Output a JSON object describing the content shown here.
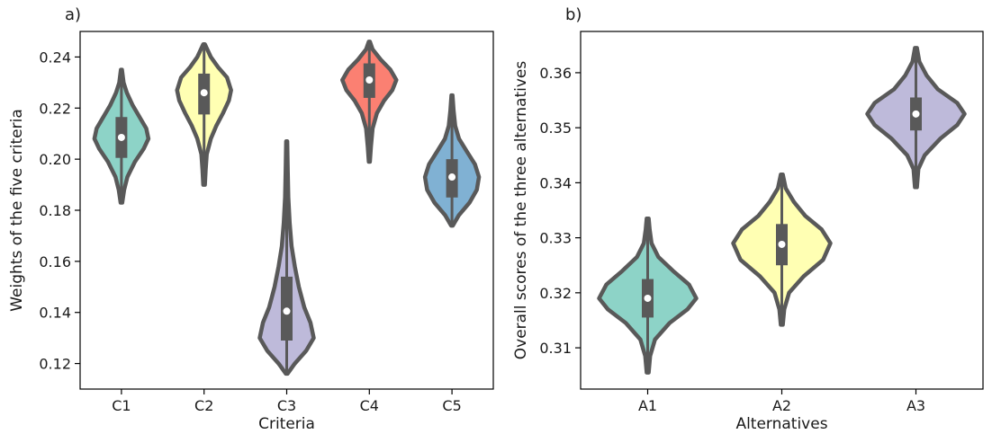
{
  "chart_data": [
    {
      "type": "violin",
      "panel_label": "a)",
      "xlabel": "Criteria",
      "ylabel": "Weights of the five criteria",
      "ylim": [
        0.11,
        0.25
      ],
      "yticks": [
        "0.12",
        "0.14",
        "0.16",
        "0.18",
        "0.20",
        "0.22",
        "0.24"
      ],
      "ytick_values": [
        0.12,
        0.14,
        0.16,
        0.18,
        0.2,
        0.22,
        0.24
      ],
      "grid": false,
      "categories": [
        "C1",
        "C2",
        "C3",
        "C4",
        "C5"
      ],
      "colors": [
        "#8dd3c7",
        "#ffffb3",
        "#bebada",
        "#fb8072",
        "#80b1d3"
      ],
      "violins": [
        {
          "min": 0.183,
          "max": 0.235,
          "q1": 0.2005,
          "q3": 0.2165,
          "median": 0.2085,
          "profile": [
            [
              0.183,
              0.03
            ],
            [
              0.188,
              0.1
            ],
            [
              0.193,
              0.22
            ],
            [
              0.199,
              0.5
            ],
            [
              0.204,
              0.82
            ],
            [
              0.208,
              1.0
            ],
            [
              0.212,
              0.92
            ],
            [
              0.216,
              0.7
            ],
            [
              0.221,
              0.42
            ],
            [
              0.226,
              0.2
            ],
            [
              0.23,
              0.08
            ],
            [
              0.235,
              0.02
            ]
          ]
        },
        {
          "min": 0.19,
          "max": 0.245,
          "q1": 0.2175,
          "q3": 0.2335,
          "median": 0.226,
          "profile": [
            [
              0.19,
              0.03
            ],
            [
              0.196,
              0.06
            ],
            [
              0.202,
              0.1
            ],
            [
              0.208,
              0.25
            ],
            [
              0.213,
              0.45
            ],
            [
              0.218,
              0.7
            ],
            [
              0.223,
              0.92
            ],
            [
              0.227,
              1.0
            ],
            [
              0.232,
              0.85
            ],
            [
              0.236,
              0.52
            ],
            [
              0.24,
              0.25
            ],
            [
              0.245,
              0.03
            ]
          ]
        },
        {
          "min": 0.116,
          "max": 0.207,
          "q1": 0.129,
          "q3": 0.154,
          "median": 0.1405,
          "profile": [
            [
              0.116,
              0.03
            ],
            [
              0.12,
              0.3
            ],
            [
              0.125,
              0.72
            ],
            [
              0.13,
              1.0
            ],
            [
              0.136,
              0.88
            ],
            [
              0.142,
              0.65
            ],
            [
              0.15,
              0.45
            ],
            [
              0.158,
              0.3
            ],
            [
              0.166,
              0.18
            ],
            [
              0.175,
              0.11
            ],
            [
              0.185,
              0.06
            ],
            [
              0.195,
              0.04
            ],
            [
              0.207,
              0.02
            ]
          ]
        },
        {
          "min": 0.199,
          "max": 0.246,
          "q1": 0.224,
          "q3": 0.2375,
          "median": 0.231,
          "profile": [
            [
              0.199,
              0.02
            ],
            [
              0.205,
              0.06
            ],
            [
              0.212,
              0.12
            ],
            [
              0.218,
              0.28
            ],
            [
              0.223,
              0.55
            ],
            [
              0.227,
              0.85
            ],
            [
              0.231,
              1.0
            ],
            [
              0.235,
              0.78
            ],
            [
              0.239,
              0.42
            ],
            [
              0.243,
              0.12
            ],
            [
              0.246,
              0.02
            ]
          ]
        },
        {
          "min": 0.174,
          "max": 0.225,
          "q1": 0.185,
          "q3": 0.2,
          "median": 0.193,
          "profile": [
            [
              0.174,
              0.03
            ],
            [
              0.178,
              0.25
            ],
            [
              0.183,
              0.65
            ],
            [
              0.188,
              0.92
            ],
            [
              0.193,
              1.0
            ],
            [
              0.198,
              0.85
            ],
            [
              0.203,
              0.55
            ],
            [
              0.208,
              0.26
            ],
            [
              0.213,
              0.12
            ],
            [
              0.219,
              0.06
            ],
            [
              0.225,
              0.02
            ]
          ]
        }
      ]
    },
    {
      "type": "violin",
      "panel_label": "b)",
      "xlabel": "Alternatives",
      "ylabel": "Overall scores of the three alternatives",
      "ylim": [
        0.3025,
        0.3675
      ],
      "yticks": [
        "0.31",
        "0.32",
        "0.33",
        "0.34",
        "0.35",
        "0.36"
      ],
      "ytick_values": [
        0.31,
        0.32,
        0.33,
        0.34,
        0.35,
        0.36
      ],
      "grid": false,
      "categories": [
        "A1",
        "A2",
        "A3"
      ],
      "colors": [
        "#8dd3c7",
        "#ffffb3",
        "#bebada"
      ],
      "violins": [
        {
          "min": 0.3055,
          "max": 0.3335,
          "q1": 0.3155,
          "q3": 0.3225,
          "median": 0.319,
          "profile": [
            [
              0.3055,
              0.02
            ],
            [
              0.3085,
              0.05
            ],
            [
              0.3115,
              0.15
            ],
            [
              0.3145,
              0.45
            ],
            [
              0.317,
              0.82
            ],
            [
              0.319,
              1.0
            ],
            [
              0.3215,
              0.85
            ],
            [
              0.324,
              0.52
            ],
            [
              0.3265,
              0.22
            ],
            [
              0.329,
              0.08
            ],
            [
              0.3315,
              0.04
            ],
            [
              0.3335,
              0.02
            ]
          ]
        },
        {
          "min": 0.3142,
          "max": 0.3415,
          "q1": 0.325,
          "q3": 0.3325,
          "median": 0.3288,
          "profile": [
            [
              0.3142,
              0.02
            ],
            [
              0.317,
              0.05
            ],
            [
              0.32,
              0.15
            ],
            [
              0.323,
              0.45
            ],
            [
              0.326,
              0.85
            ],
            [
              0.329,
              1.0
            ],
            [
              0.3315,
              0.82
            ],
            [
              0.334,
              0.48
            ],
            [
              0.3365,
              0.25
            ],
            [
              0.339,
              0.08
            ],
            [
              0.3415,
              0.02
            ]
          ]
        },
        {
          "min": 0.3392,
          "max": 0.3645,
          "q1": 0.3495,
          "q3": 0.3555,
          "median": 0.3525,
          "profile": [
            [
              0.3392,
              0.02
            ],
            [
              0.3425,
              0.05
            ],
            [
              0.345,
              0.18
            ],
            [
              0.348,
              0.5
            ],
            [
              0.3505,
              0.85
            ],
            [
              0.3525,
              1.0
            ],
            [
              0.3545,
              0.85
            ],
            [
              0.357,
              0.45
            ],
            [
              0.3595,
              0.22
            ],
            [
              0.362,
              0.07
            ],
            [
              0.3645,
              0.02
            ]
          ]
        }
      ]
    }
  ]
}
